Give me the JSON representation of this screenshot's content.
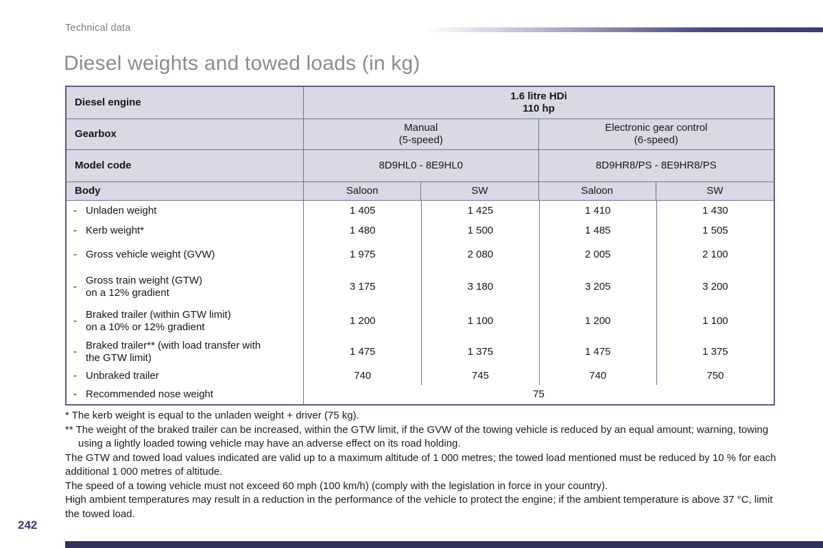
{
  "page": {
    "section": "Technical data",
    "title": "Diesel weights and towed loads (in kg)",
    "page_number": "242"
  },
  "table": {
    "row_marker": "-",
    "engine": {
      "label": "Diesel engine",
      "value_line1": "1.6 litre HDi",
      "value_line2": "110 hp"
    },
    "gearbox": {
      "label": "Gearbox",
      "manual_line1": "Manual",
      "manual_line2": "(5-speed)",
      "electronic_line1": "Electronic gear control",
      "electronic_line2": "(6-speed)"
    },
    "model": {
      "label": "Model code",
      "manual": "8D9HL0 - 8E9HL0",
      "electronic": "8D9HR8/PS - 8E9HR8/PS"
    },
    "body": {
      "label": "Body",
      "cols": [
        "Saloon",
        "SW",
        "Saloon",
        "SW"
      ]
    },
    "rows": [
      {
        "label": "Unladen weight",
        "values": [
          "1 405",
          "1 425",
          "1 410",
          "1 430"
        ]
      },
      {
        "label": "Kerb weight*",
        "values": [
          "1 480",
          "1 500",
          "1 485",
          "1 505"
        ]
      },
      {
        "label": "Gross vehicle weight (GVW)",
        "values": [
          "1 975",
          "2 080",
          "2 005",
          "2 100"
        ]
      },
      {
        "label": "Gross train weight (GTW)",
        "label2": "on a 12% gradient",
        "values": [
          "3 175",
          "3 180",
          "3 205",
          "3 200"
        ]
      },
      {
        "label": "Braked trailer (within GTW limit)",
        "label2": "on a 10% or 12% gradient",
        "values": [
          "1 200",
          "1 100",
          "1 200",
          "1 100"
        ]
      },
      {
        "label": "Braked trailer** (with load transfer with",
        "label2": "the GTW limit)",
        "values": [
          "1 475",
          "1 375",
          "1 475",
          "1 375"
        ]
      },
      {
        "label": "Unbraked trailer",
        "values": [
          "740",
          "745",
          "740",
          "750"
        ]
      },
      {
        "label": "Recommended nose weight",
        "span_value": "75"
      }
    ]
  },
  "footnotes": [
    "* The kerb weight is equal to the unladen weight + driver (75 kg).",
    "** The weight of the braked trailer can be increased, within the GTW limit, if the GVW of the towing vehicle is reduced by an equal amount; warning, towing using a lightly loaded towing vehicle may have an adverse effect on its road holding.",
    "The GTW and towed load values indicated are valid up to a maximum altitude of 1 000 metres; the towed load mentioned must be reduced by 10 % for each additional 1 000 metres of altitude.",
    "The speed of a towing vehicle must not exceed 60 mph (100 km/h) (comply with the legislation in force in your country).",
    "High ambient temperatures may result in a reduction in the performance of the vehicle to protect the engine; if the ambient temperature is above 37 °C, limit the towed load."
  ],
  "colors": {
    "accent_navy": "#3b3b6d",
    "table_header_fill": "#d9d9e6",
    "table_border": "#70708e",
    "title_gray": "#8c8c8c"
  }
}
